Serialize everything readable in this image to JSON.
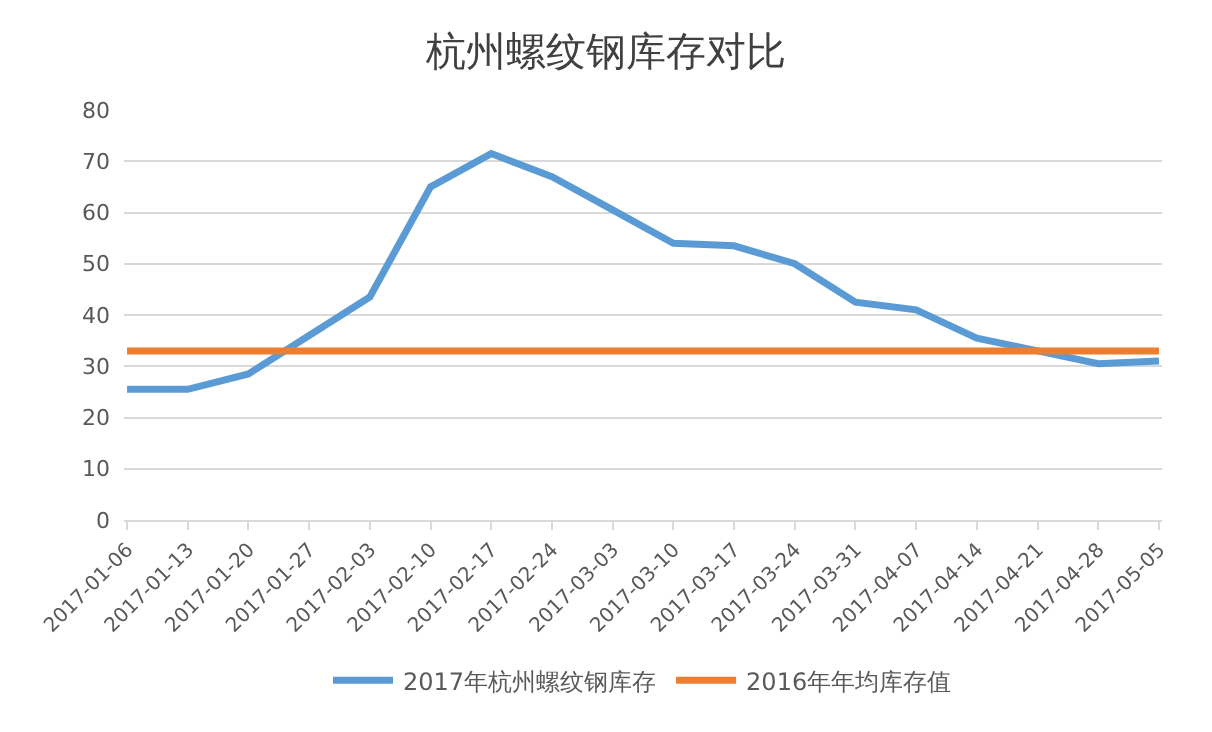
{
  "chart_data": {
    "type": "line",
    "title": "杭州螺纹钢库存对比",
    "categories": [
      "2017-01-06",
      "2017-01-13",
      "2017-01-20",
      "2017-01-27",
      "2017-02-03",
      "2017-02-10",
      "2017-02-17",
      "2017-02-24",
      "2017-03-03",
      "2017-03-10",
      "2017-03-17",
      "2017-03-24",
      "2017-03-31",
      "2017-04-07",
      "2017-04-14",
      "2017-04-21",
      "2017-04-28",
      "2017-05-05"
    ],
    "series": [
      {
        "name": "2017年杭州螺纹钢库存",
        "color": "#5b9bd5",
        "values": [
          25.5,
          25.5,
          28.5,
          36,
          43.5,
          65,
          71.5,
          67,
          60.5,
          54,
          53.5,
          50,
          42.5,
          41,
          35.5,
          33,
          30.5,
          31
        ]
      },
      {
        "name": "2016年年均库存值",
        "color": "#ed7d31",
        "values": [
          33,
          33,
          33,
          33,
          33,
          33,
          33,
          33,
          33,
          33,
          33,
          33,
          33,
          33,
          33,
          33,
          33,
          33
        ]
      }
    ],
    "ylim": [
      0,
      80
    ],
    "yticks": [
      0,
      10,
      20,
      30,
      40,
      50,
      60,
      70,
      80
    ],
    "grid": "y",
    "legend": "bottom",
    "marker": "none",
    "line_style": "solid"
  }
}
